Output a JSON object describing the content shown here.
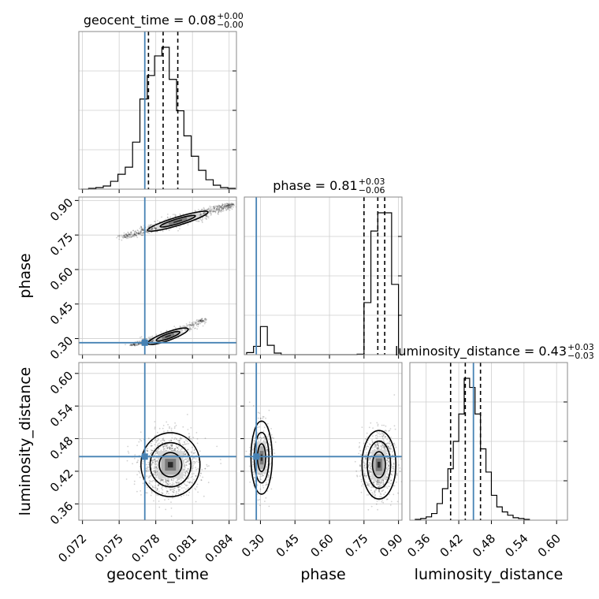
{
  "chart_data": {
    "type": "corner",
    "parameters": [
      "geocent_time",
      "phase",
      "luminosity_distance"
    ],
    "truths": {
      "geocent_time": 0.0771,
      "phase": 0.282,
      "luminosity_distance": 0.447
    },
    "titles": [
      {
        "param": "geocent_time",
        "prefix": "geocent_time = ",
        "value": "0.08",
        "plus": "+0.00",
        "minus": "−0.00"
      },
      {
        "param": "phase",
        "prefix": "phase = ",
        "value": "0.81",
        "plus": "+0.03",
        "minus": "−0.06"
      },
      {
        "param": "luminosity_distance",
        "prefix": "luminosity_distance = ",
        "value": "0.43",
        "plus": "+0.03",
        "minus": "−0.03"
      }
    ],
    "axes": {
      "geocent_time": {
        "range": [
          0.0717,
          0.0846
        ],
        "ticks": [
          "0.072",
          "0.075",
          "0.078",
          "0.081",
          "0.084"
        ],
        "tick_values": [
          0.072,
          0.075,
          0.078,
          0.081,
          0.084
        ]
      },
      "phase": {
        "range": [
          0.23,
          0.915
        ],
        "ticks": [
          "0.30",
          "0.45",
          "0.60",
          "0.75",
          "0.90"
        ],
        "tick_values": [
          0.3,
          0.45,
          0.6,
          0.75,
          0.9
        ]
      },
      "luminosity_distance": {
        "range": [
          0.33,
          0.62
        ],
        "ticks": [
          "0.36",
          "0.42",
          "0.48",
          "0.54",
          "0.60"
        ],
        "tick_values": [
          0.36,
          0.42,
          0.48,
          0.54,
          0.6
        ]
      }
    },
    "histograms": {
      "geocent_time": {
        "edges": [
          0.0719,
          0.0725,
          0.0731,
          0.0737,
          0.0743,
          0.0749,
          0.0755,
          0.0761,
          0.0767,
          0.0773,
          0.0779,
          0.0785,
          0.0791,
          0.0797,
          0.0803,
          0.0809,
          0.0815,
          0.0821,
          0.0827,
          0.0833,
          0.0839,
          0.0845
        ],
        "counts": [
          0,
          1,
          2,
          4,
          10,
          19,
          28,
          60,
          115,
          145,
          170,
          181,
          140,
          100,
          68,
          42,
          24,
          12,
          5,
          2,
          1
        ],
        "quantiles": [
          0.0774,
          0.0786,
          0.0798
        ]
      },
      "phase": {
        "edges": [
          0.24,
          0.27,
          0.3,
          0.33,
          0.36,
          0.39,
          0.42,
          0.45,
          0.48,
          0.51,
          0.54,
          0.57,
          0.6,
          0.63,
          0.66,
          0.69,
          0.72,
          0.75,
          0.78,
          0.81,
          0.84,
          0.87,
          0.9
        ],
        "counts": [
          8,
          32,
          108,
          36,
          6,
          0,
          0,
          0,
          0,
          0,
          0,
          0,
          0,
          0,
          0,
          0,
          2,
          200,
          475,
          545,
          545,
          270
        ],
        "quantiles": [
          0.75,
          0.81,
          0.84
        ]
      },
      "luminosity_distance": {
        "edges": [
          0.34,
          0.35,
          0.36,
          0.37,
          0.38,
          0.39,
          0.4,
          0.41,
          0.42,
          0.43,
          0.44,
          0.45,
          0.46,
          0.47,
          0.48,
          0.49,
          0.5,
          0.51,
          0.52,
          0.53,
          0.54,
          0.55
        ],
        "counts": [
          1,
          2,
          4,
          8,
          20,
          38,
          62,
          95,
          128,
          171,
          160,
          128,
          86,
          58,
          30,
          16,
          10,
          6,
          3,
          2,
          1
        ],
        "quantiles": [
          0.405,
          0.432,
          0.46
        ]
      }
    },
    "pairs": [
      {
        "x": "geocent_time",
        "y": "phase",
        "clusters": [
          {
            "x": [
              0.0753,
              0.0798,
              0.0843
            ],
            "y": [
              0.74,
              0.81,
              0.885
            ],
            "wx": 0.0025,
            "wy": 0.035,
            "n": 900
          },
          {
            "x": [
              0.076,
              0.079,
              0.082
            ],
            "y": [
              0.27,
              0.31,
              0.385
            ],
            "wx": 0.002,
            "wy": 0.02,
            "n": 450
          }
        ]
      },
      {
        "x": "geocent_time",
        "y": "luminosity_distance",
        "clusters": [
          {
            "cx": 0.0792,
            "cy": 0.432,
            "sx": 0.00115,
            "sy": 0.028,
            "n": 1200
          }
        ]
      },
      {
        "x": "phase",
        "y": "luminosity_distance",
        "clusters": [
          {
            "cx": 0.305,
            "cy": 0.445,
            "sx": 0.022,
            "sy": 0.032,
            "n": 380
          },
          {
            "cx": 0.815,
            "cy": 0.432,
            "sx": 0.035,
            "sy": 0.03,
            "n": 900
          }
        ]
      }
    ]
  }
}
